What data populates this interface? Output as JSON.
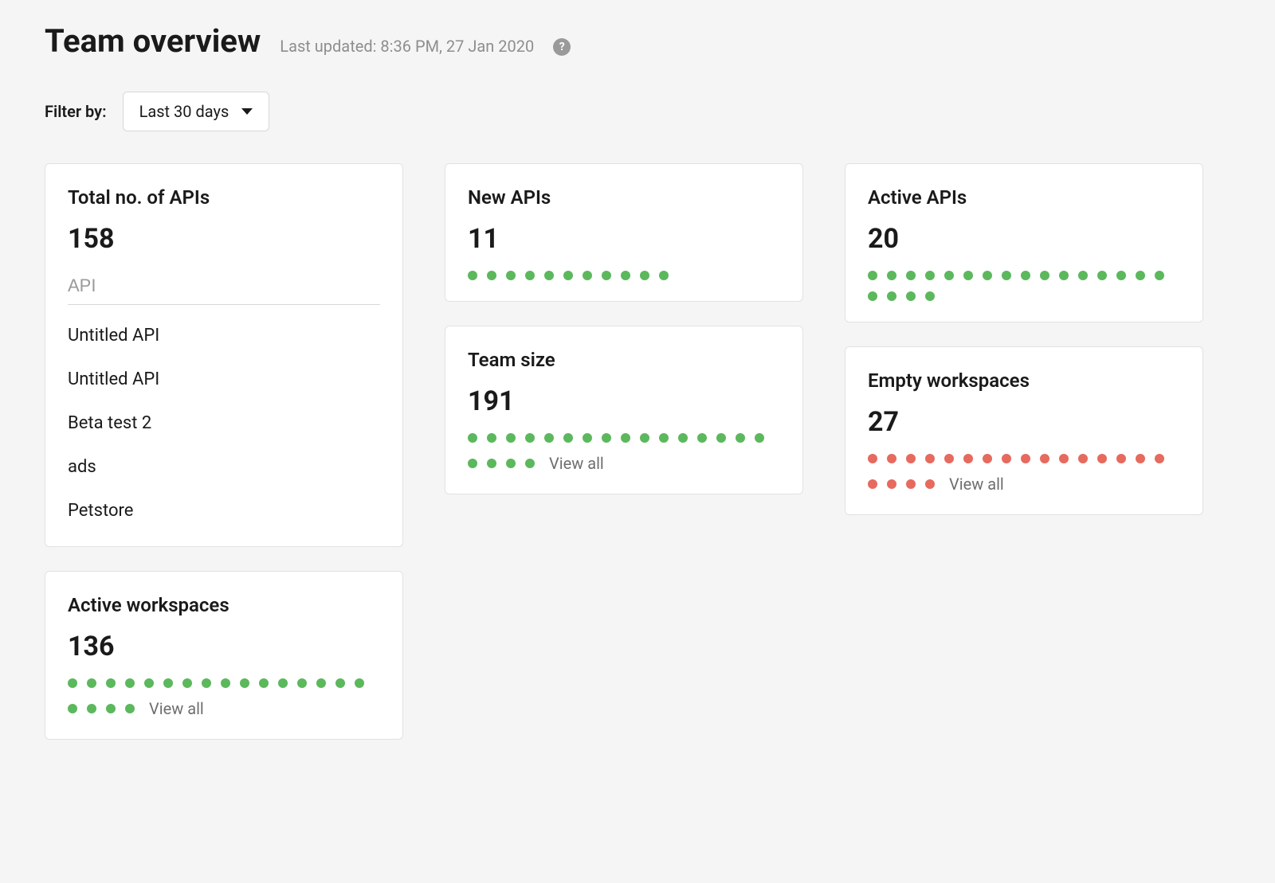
{
  "header": {
    "title": "Team overview",
    "last_updated": "Last updated: 8:36 PM, 27 Jan 2020"
  },
  "filter": {
    "label": "Filter by:",
    "selected": "Last 30 days"
  },
  "colors": {
    "green": "#5cb85c",
    "red": "#e66a5e",
    "card_bg": "#ffffff",
    "card_border": "#e2e2e2",
    "text": "#1a1a1a",
    "muted": "#8e8e8e",
    "page_bg": "#f5f5f5"
  },
  "view_all_label": "View all",
  "cards": {
    "total_apis": {
      "title": "Total no. of APIs",
      "value": "158",
      "search_placeholder": "API",
      "items": [
        "Untitled API",
        "Untitled API",
        "Beta test 2",
        "ads",
        "Petstore"
      ]
    },
    "active_workspaces": {
      "title": "Active workspaces",
      "value": "136",
      "dot_count": 20,
      "dot_color": "#5cb85c",
      "show_view_all": true
    },
    "new_apis": {
      "title": "New APIs",
      "value": "11",
      "dot_count": 11,
      "dot_color": "#5cb85c",
      "show_view_all": false
    },
    "team_size": {
      "title": "Team size",
      "value": "191",
      "dot_count": 20,
      "dot_color": "#5cb85c",
      "show_view_all": true
    },
    "active_apis": {
      "title": "Active APIs",
      "value": "20",
      "dot_count": 20,
      "dot_color": "#5cb85c",
      "show_view_all": false
    },
    "empty_workspaces": {
      "title": "Empty workspaces",
      "value": "27",
      "dot_count": 20,
      "dot_color": "#e66a5e",
      "show_view_all": true
    }
  }
}
